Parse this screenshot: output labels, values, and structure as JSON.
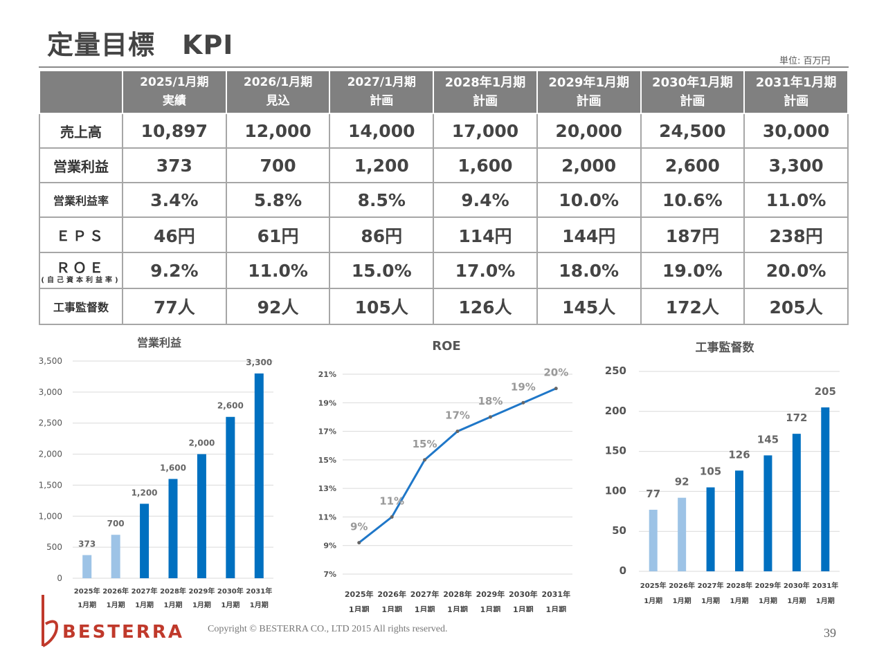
{
  "page": {
    "title": "定量目標　KPI",
    "unit_note": "単位: 百万円",
    "copyright": "Copyright © BESTERRA CO., LTD 2015 All rights reserved.",
    "page_number": "39",
    "logo_text": "BESTERRA"
  },
  "table": {
    "columns": [
      {
        "period": "2025/1月期",
        "status": "実績"
      },
      {
        "period": "2026/1月期",
        "status": "見込"
      },
      {
        "period": "2027/1月期",
        "status": "計画"
      },
      {
        "period": "2028年1月期",
        "status": "計画"
      },
      {
        "period": "2029年1月期",
        "status": "計画"
      },
      {
        "period": "2030年1月期",
        "status": "計画"
      },
      {
        "period": "2031年1月期",
        "status": "計画"
      }
    ],
    "rows": [
      {
        "label": "売上高",
        "sub": "",
        "values": [
          "10,897",
          "12,000",
          "14,000",
          "17,000",
          "20,000",
          "24,500",
          "30,000"
        ]
      },
      {
        "label": "営業利益",
        "sub": "",
        "values": [
          "373",
          "700",
          "1,200",
          "1,600",
          "2,000",
          "2,600",
          "3,300"
        ]
      },
      {
        "label": "営業利益率",
        "sub": "",
        "values": [
          "3.4%",
          "5.8%",
          "8.5%",
          "9.4%",
          "10.0%",
          "10.6%",
          "11.0%"
        ]
      },
      {
        "label": "ＥＰＳ",
        "sub": "",
        "values": [
          "46円",
          "61円",
          "86円",
          "114円",
          "144円",
          "187円",
          "238円"
        ]
      },
      {
        "label": "ＲＯＥ",
        "sub": "(自己資本利益率)",
        "values": [
          "9.2%",
          "11.0%",
          "15.0%",
          "17.0%",
          "18.0%",
          "19.0%",
          "20.0%"
        ]
      },
      {
        "label": "工事監督数",
        "sub": "",
        "values": [
          "77人",
          "92人",
          "105人",
          "126人",
          "145人",
          "172人",
          "205人"
        ]
      }
    ]
  },
  "colors": {
    "actual_bar": "#9dc3e6",
    "plan_bar": "#0070c0",
    "line": "#1f77c8",
    "header_bg": "#808080",
    "logo_red": "#c0392b"
  },
  "chart_data": [
    {
      "type": "bar",
      "title": "営業利益",
      "categories": [
        [
          "2025年",
          "1月期"
        ],
        [
          "2026年",
          "1月期"
        ],
        [
          "2027年",
          "1月期"
        ],
        [
          "2028年",
          "1月期"
        ],
        [
          "2029年",
          "1月期"
        ],
        [
          "2030年",
          "1月期"
        ],
        [
          "2031年",
          "1月期"
        ]
      ],
      "values": [
        373,
        700,
        1200,
        1600,
        2000,
        2600,
        3300
      ],
      "data_labels": [
        "373",
        "700",
        "1,200",
        "1,600",
        "2,000",
        "2,600",
        "3,300"
      ],
      "highlight_first_n_light": 2,
      "ylim": [
        0,
        3500
      ],
      "yticks": [
        0,
        500,
        1000,
        1500,
        2000,
        2500,
        3000,
        3500
      ],
      "ytick_labels": [
        "0",
        "500",
        "1,000",
        "1,500",
        "2,000",
        "2,500",
        "3,000",
        "3,500"
      ],
      "grid": true
    },
    {
      "type": "line",
      "title": "ROE",
      "categories": [
        [
          "2025年",
          "1月期"
        ],
        [
          "2026年",
          "1月期"
        ],
        [
          "2027年",
          "1月期"
        ],
        [
          "2028年",
          "1月期"
        ],
        [
          "2029年",
          "1月期"
        ],
        [
          "2030年",
          "1月期"
        ],
        [
          "2031年",
          "1月期"
        ]
      ],
      "values": [
        9.2,
        11.0,
        15.0,
        17.0,
        18.0,
        19.0,
        20.0
      ],
      "data_labels": [
        "9%",
        "11%",
        "15%",
        "17%",
        "18%",
        "19%",
        "20%"
      ],
      "ylim": [
        7,
        21
      ],
      "yticks": [
        7,
        9,
        11,
        13,
        15,
        17,
        19,
        21
      ],
      "ytick_labels": [
        "7%",
        "9%",
        "11%",
        "13%",
        "15%",
        "17%",
        "19%",
        "21%"
      ],
      "grid": true
    },
    {
      "type": "bar",
      "title": "工事監督数",
      "categories": [
        [
          "2025年",
          "1月期"
        ],
        [
          "2026年",
          "1月期"
        ],
        [
          "2027年",
          "1月期"
        ],
        [
          "2028年",
          "1月期"
        ],
        [
          "2029年",
          "1月期"
        ],
        [
          "2030年",
          "1月期"
        ],
        [
          "2031年",
          "1月期"
        ]
      ],
      "values": [
        77,
        92,
        105,
        126,
        145,
        172,
        205
      ],
      "data_labels": [
        "77",
        "92",
        "105",
        "126",
        "145",
        "172",
        "205"
      ],
      "highlight_first_n_light": 2,
      "ylim": [
        0,
        250
      ],
      "yticks": [
        0,
        50,
        100,
        150,
        200,
        250
      ],
      "ytick_labels": [
        "0",
        "50",
        "100",
        "150",
        "200",
        "250"
      ],
      "grid": true
    }
  ]
}
